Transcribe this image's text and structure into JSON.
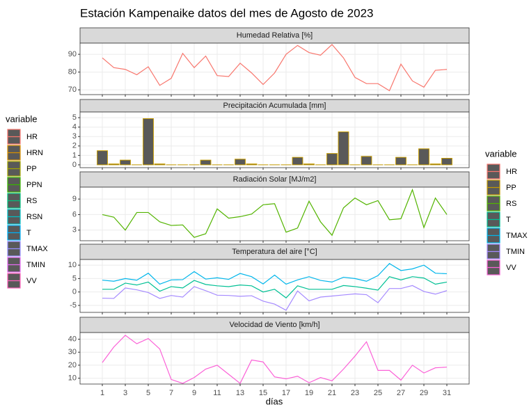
{
  "title": "Estación Kampenaike datos del mes de Agosto de 2023",
  "xlabel": "días",
  "legends": [
    {
      "title": "variable",
      "items": [
        {
          "name": "HR",
          "color": "#F8766D"
        },
        {
          "name": "HRN",
          "color": "#D89000"
        },
        {
          "name": "PP",
          "color": "#A3A500"
        },
        {
          "name": "PPN",
          "color": "#39B600"
        },
        {
          "name": "RS",
          "color": "#00BF7D"
        },
        {
          "name": "RSN",
          "color": "#00BFC4"
        },
        {
          "name": "T",
          "color": "#00B0F6"
        },
        {
          "name": "TMAX",
          "color": "#9590FF"
        },
        {
          "name": "TMIN",
          "color": "#E76BF3"
        },
        {
          "name": "VV",
          "color": "#FF62BC"
        }
      ]
    },
    {
      "title": "variable",
      "items": [
        {
          "name": "HR",
          "color": "#F8766D"
        },
        {
          "name": "PP",
          "color": "#C49A00"
        },
        {
          "name": "RS",
          "color": "#53B400"
        },
        {
          "name": "T",
          "color": "#00C094"
        },
        {
          "name": "TMAX",
          "color": "#00B6EB"
        },
        {
          "name": "TMIN",
          "color": "#A58AFF"
        },
        {
          "name": "VV",
          "color": "#FB61D7"
        }
      ]
    }
  ],
  "chart_data": [
    {
      "type": "line",
      "title": "Humedad Relativa [%]",
      "x": [
        1,
        2,
        3,
        4,
        5,
        6,
        7,
        8,
        9,
        10,
        11,
        12,
        13,
        14,
        15,
        16,
        17,
        18,
        19,
        20,
        21,
        22,
        23,
        24,
        25,
        26,
        27,
        28,
        29,
        30,
        31
      ],
      "xlim": [
        -0.94,
        32.94
      ],
      "xticks": [
        1,
        3,
        5,
        7,
        9,
        11,
        13,
        15,
        17,
        19,
        21,
        23,
        25,
        27,
        29,
        31
      ],
      "ylim": [
        67.3,
        96.3
      ],
      "yticks": [
        70,
        80,
        90
      ],
      "grid": true,
      "series": [
        {
          "name": "HR",
          "color": "#F8766D",
          "values": [
            88,
            82.5,
            81.5,
            78.5,
            83,
            72.5,
            76.5,
            90.5,
            82.5,
            89,
            78,
            77.5,
            85,
            79.5,
            73,
            79.5,
            90,
            95,
            91,
            89.5,
            95.5,
            88,
            77,
            73.5,
            73.5,
            69.5,
            84.5,
            75,
            71.5,
            81,
            81.5
          ]
        }
      ]
    },
    {
      "type": "bar",
      "title": "Precipitación Acumulada [mm]",
      "x": [
        1,
        2,
        3,
        4,
        5,
        6,
        7,
        8,
        9,
        10,
        11,
        12,
        13,
        14,
        15,
        16,
        17,
        18,
        19,
        20,
        21,
        22,
        23,
        24,
        25,
        26,
        27,
        28,
        29,
        30,
        31
      ],
      "xlim": [
        -0.94,
        32.94
      ],
      "xticks": [
        1,
        3,
        5,
        7,
        9,
        11,
        13,
        15,
        17,
        19,
        21,
        23,
        25,
        27,
        29,
        31
      ],
      "ylim": [
        -0.3,
        5.6
      ],
      "yticks": [
        0,
        1,
        2,
        3,
        4,
        5
      ],
      "grid": true,
      "series": [
        {
          "name": "PP",
          "color": "#C49A00",
          "fill": "#595959",
          "values": [
            1.5,
            0.1,
            0.5,
            0,
            4.9,
            0.1,
            0,
            0,
            0,
            0.5,
            0,
            0,
            0.6,
            0.1,
            0,
            0,
            0,
            0.8,
            0.1,
            0,
            1.2,
            3.5,
            0,
            0.9,
            0,
            0,
            0.8,
            0,
            1.7,
            0.1,
            0.7
          ]
        }
      ]
    },
    {
      "type": "line",
      "title": "Radiación Solar [MJ/m2]",
      "x": [
        1,
        2,
        3,
        4,
        5,
        6,
        7,
        8,
        9,
        10,
        11,
        12,
        13,
        14,
        15,
        16,
        17,
        18,
        19,
        20,
        21,
        22,
        23,
        24,
        25,
        26,
        27,
        28,
        29,
        30,
        31
      ],
      "xlim": [
        -0.94,
        32.94
      ],
      "xticks": [
        1,
        3,
        5,
        7,
        9,
        11,
        13,
        15,
        17,
        19,
        21,
        23,
        25,
        27,
        29,
        31
      ],
      "ylim": [
        0.95,
        11.3
      ],
      "yticks": [
        3,
        6,
        9
      ],
      "grid": true,
      "series": [
        {
          "name": "RS",
          "color": "#53B400",
          "values": [
            6,
            5.5,
            3,
            6.4,
            6.4,
            4.6,
            3.9,
            4,
            1.6,
            2.3,
            7.1,
            5.3,
            5.6,
            6.1,
            7.9,
            8.1,
            2.6,
            3.4,
            8.6,
            4.6,
            2,
            7.3,
            9.2,
            7.9,
            8.7,
            5,
            5.2,
            10.8,
            3.5,
            9.2,
            6
          ]
        }
      ]
    },
    {
      "type": "line",
      "title": "Temperatura del aire [°C]",
      "x": [
        1,
        2,
        3,
        4,
        5,
        6,
        7,
        8,
        9,
        10,
        11,
        12,
        13,
        14,
        15,
        16,
        17,
        18,
        19,
        20,
        21,
        22,
        23,
        24,
        25,
        26,
        27,
        28,
        29,
        30,
        31
      ],
      "xlim": [
        -0.94,
        32.94
      ],
      "xticks": [
        1,
        3,
        5,
        7,
        9,
        11,
        13,
        15,
        17,
        19,
        21,
        23,
        25,
        27,
        29,
        31
      ],
      "ylim": [
        -7.6,
        12.1
      ],
      "yticks": [
        -5,
        0,
        5,
        10
      ],
      "grid": true,
      "series": [
        {
          "name": "T",
          "color": "#00C094",
          "values": [
            1,
            1,
            3.3,
            2.6,
            3.7,
            0.3,
            2,
            1.5,
            4.3,
            2.8,
            2.3,
            2,
            2.6,
            2.3,
            0,
            1,
            -2.2,
            2.3,
            1,
            1,
            1,
            2.4,
            2,
            1.4,
            0.7,
            5.7,
            4.5,
            5.7,
            5.2,
            2.9,
            3.7
          ]
        },
        {
          "name": "TMAX",
          "color": "#00B6EB",
          "values": [
            4.4,
            4,
            5,
            4.4,
            7,
            2.9,
            4.5,
            4.6,
            7.6,
            4.8,
            5.3,
            4.7,
            6.9,
            5.7,
            3,
            6.3,
            2.9,
            4.5,
            5.7,
            4.3,
            3.7,
            5.5,
            5,
            4,
            6.1,
            10.6,
            8,
            8.6,
            10,
            7,
            6.8
          ]
        },
        {
          "name": "TMIN",
          "color": "#A58AFF",
          "values": [
            -2.3,
            -2.4,
            1.5,
            0.8,
            -0.2,
            -2.4,
            -1.3,
            -1.9,
            2,
            0.5,
            -1.2,
            -1.3,
            -1.6,
            -1.4,
            -3.4,
            -4.5,
            -6.8,
            0.4,
            -3.3,
            -1.9,
            -1.5,
            -1.1,
            -0.7,
            -1,
            -4,
            1.3,
            1.3,
            2.4,
            0.2,
            -0.8,
            0.5
          ]
        }
      ]
    },
    {
      "type": "line",
      "title": "Velocidad de Viento [km/h]",
      "x": [
        1,
        2,
        3,
        4,
        5,
        6,
        7,
        8,
        9,
        10,
        11,
        12,
        13,
        14,
        15,
        16,
        17,
        18,
        19,
        20,
        21,
        22,
        23,
        24,
        25,
        26,
        27,
        28,
        29,
        30,
        31
      ],
      "xlim": [
        -0.94,
        32.94
      ],
      "xticks": [
        1,
        3,
        5,
        7,
        9,
        11,
        13,
        15,
        17,
        19,
        21,
        23,
        25,
        27,
        29,
        31
      ],
      "ylim": [
        5.5,
        45.1
      ],
      "yticks": [
        10,
        20,
        30,
        40
      ],
      "grid": true,
      "series": [
        {
          "name": "VV",
          "color": "#FB61D7",
          "values": [
            22,
            34,
            43,
            36.5,
            40.5,
            32.5,
            9,
            6,
            10.5,
            17,
            20,
            13,
            6,
            24,
            22.5,
            11,
            9.5,
            11.5,
            6.5,
            10.5,
            8,
            17,
            27,
            38,
            16,
            16,
            8.5,
            20,
            14,
            18,
            18.5
          ]
        }
      ]
    }
  ]
}
